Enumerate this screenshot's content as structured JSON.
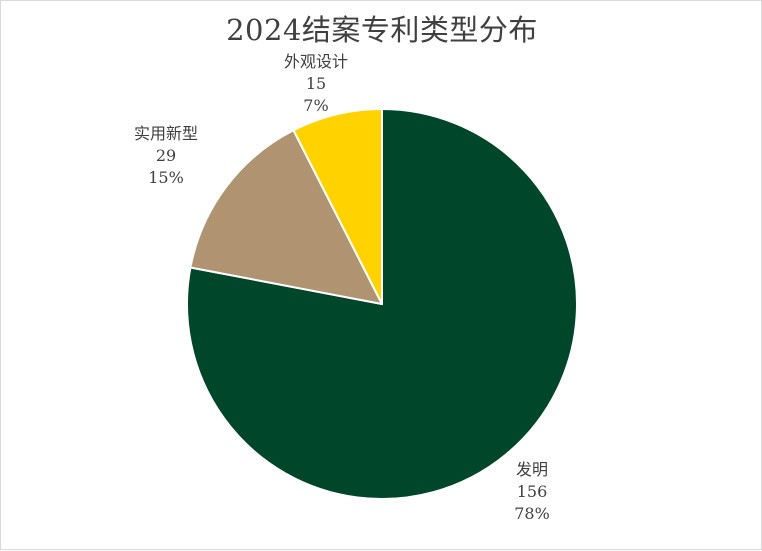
{
  "chart_data": {
    "type": "pie",
    "title": "2024结案专利类型分布",
    "slices": [
      {
        "name": "发明",
        "value": 156,
        "percent": "78%",
        "color": "#00462a"
      },
      {
        "name": "实用新型",
        "value": 29,
        "percent": "15%",
        "color": "#b09472"
      },
      {
        "name": "外观设计",
        "value": 15,
        "percent": "7%",
        "color": "#ffd200"
      }
    ],
    "start_angle_deg": 0,
    "direction": "clockwise",
    "legend": "none",
    "data_labels": "category, value, percent"
  }
}
